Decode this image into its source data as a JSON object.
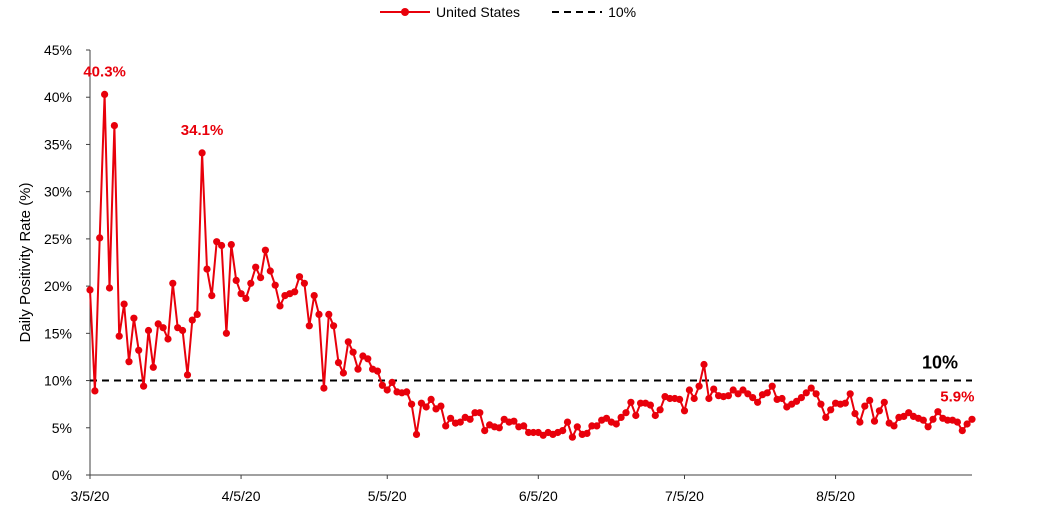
{
  "legend": {
    "series_label": "United States",
    "threshold_label": "10%"
  },
  "colors": {
    "series": "#e8000b",
    "threshold": "#000000",
    "axis": "#404040"
  },
  "chart_data": {
    "type": "line",
    "ylabel": "Daily Positivity Rate (%)",
    "xlabel": "",
    "ylim": [
      0,
      45
    ],
    "y_ticks": [
      "0%",
      "5%",
      "10%",
      "15%",
      "20%",
      "25%",
      "30%",
      "35%",
      "40%",
      "45%"
    ],
    "x_ticks": [
      "3/5/20",
      "4/5/20",
      "5/5/20",
      "6/5/20",
      "7/5/20",
      "8/5/20"
    ],
    "x_start": "3/5/20",
    "x_end": "8/30/20",
    "threshold": 10,
    "threshold_label": "10%",
    "series": [
      {
        "name": "United States",
        "values": [
          19.6,
          8.9,
          25.1,
          40.3,
          19.8,
          37.0,
          14.7,
          18.1,
          12.0,
          16.6,
          13.2,
          9.4,
          15.3,
          11.4,
          16.0,
          15.6,
          14.4,
          20.3,
          15.6,
          15.3,
          10.6,
          16.4,
          17.0,
          34.1,
          21.8,
          19.0,
          24.7,
          24.3,
          15.0,
          24.4,
          20.6,
          19.2,
          18.7,
          20.3,
          22.0,
          20.9,
          23.8,
          21.6,
          20.1,
          17.9,
          19.0,
          19.2,
          19.4,
          21.0,
          20.3,
          15.8,
          19.0,
          17.0,
          9.2,
          17.0,
          15.8,
          11.9,
          10.8,
          14.1,
          13.0,
          11.2,
          12.6,
          12.3,
          11.2,
          11.0,
          9.5,
          9.0,
          9.8,
          8.8,
          8.7,
          8.8,
          7.5,
          4.3,
          7.6,
          7.2,
          8.0,
          7.0,
          7.3,
          5.2,
          6.0,
          5.5,
          5.6,
          6.1,
          5.9,
          6.6,
          6.6,
          4.7,
          5.3,
          5.1,
          5.0,
          5.9,
          5.6,
          5.7,
          5.1,
          5.2,
          4.5,
          4.5,
          4.5,
          4.2,
          4.5,
          4.3,
          4.5,
          4.7,
          5.6,
          4.0,
          5.1,
          4.3,
          4.4,
          5.2,
          5.2,
          5.8,
          6.0,
          5.6,
          5.4,
          6.1,
          6.6,
          7.7,
          6.3,
          7.6,
          7.6,
          7.4,
          6.3,
          6.9,
          8.3,
          8.1,
          8.1,
          8.0,
          6.8,
          9.0,
          8.1,
          9.4,
          11.7,
          8.1,
          9.1,
          8.4,
          8.3,
          8.4,
          9.0,
          8.6,
          9.0,
          8.6,
          8.2,
          7.7,
          8.5,
          8.7,
          9.4,
          8.0,
          8.1,
          7.2,
          7.5,
          7.8,
          8.2,
          8.7,
          9.2,
          8.6,
          7.5,
          6.1,
          6.9,
          7.6,
          7.5,
          7.6,
          8.6,
          6.5,
          5.6,
          7.3,
          7.9,
          5.7,
          6.8,
          7.7,
          5.5,
          5.2,
          6.1,
          6.2,
          6.6,
          6.2,
          6.0,
          5.8,
          5.1,
          5.9,
          6.7,
          6.0,
          5.8,
          5.8,
          5.6,
          4.7,
          5.4,
          5.9
        ]
      }
    ],
    "annotations": [
      {
        "text": "40.3%",
        "index": 3,
        "value": 40.3
      },
      {
        "text": "34.1%",
        "index": 23,
        "value": 34.1
      },
      {
        "text": "5.9%",
        "index": 178,
        "value": 5.9
      },
      {
        "text": "10%",
        "value": 10
      }
    ],
    "grid": false,
    "legend_position": "top-center"
  }
}
